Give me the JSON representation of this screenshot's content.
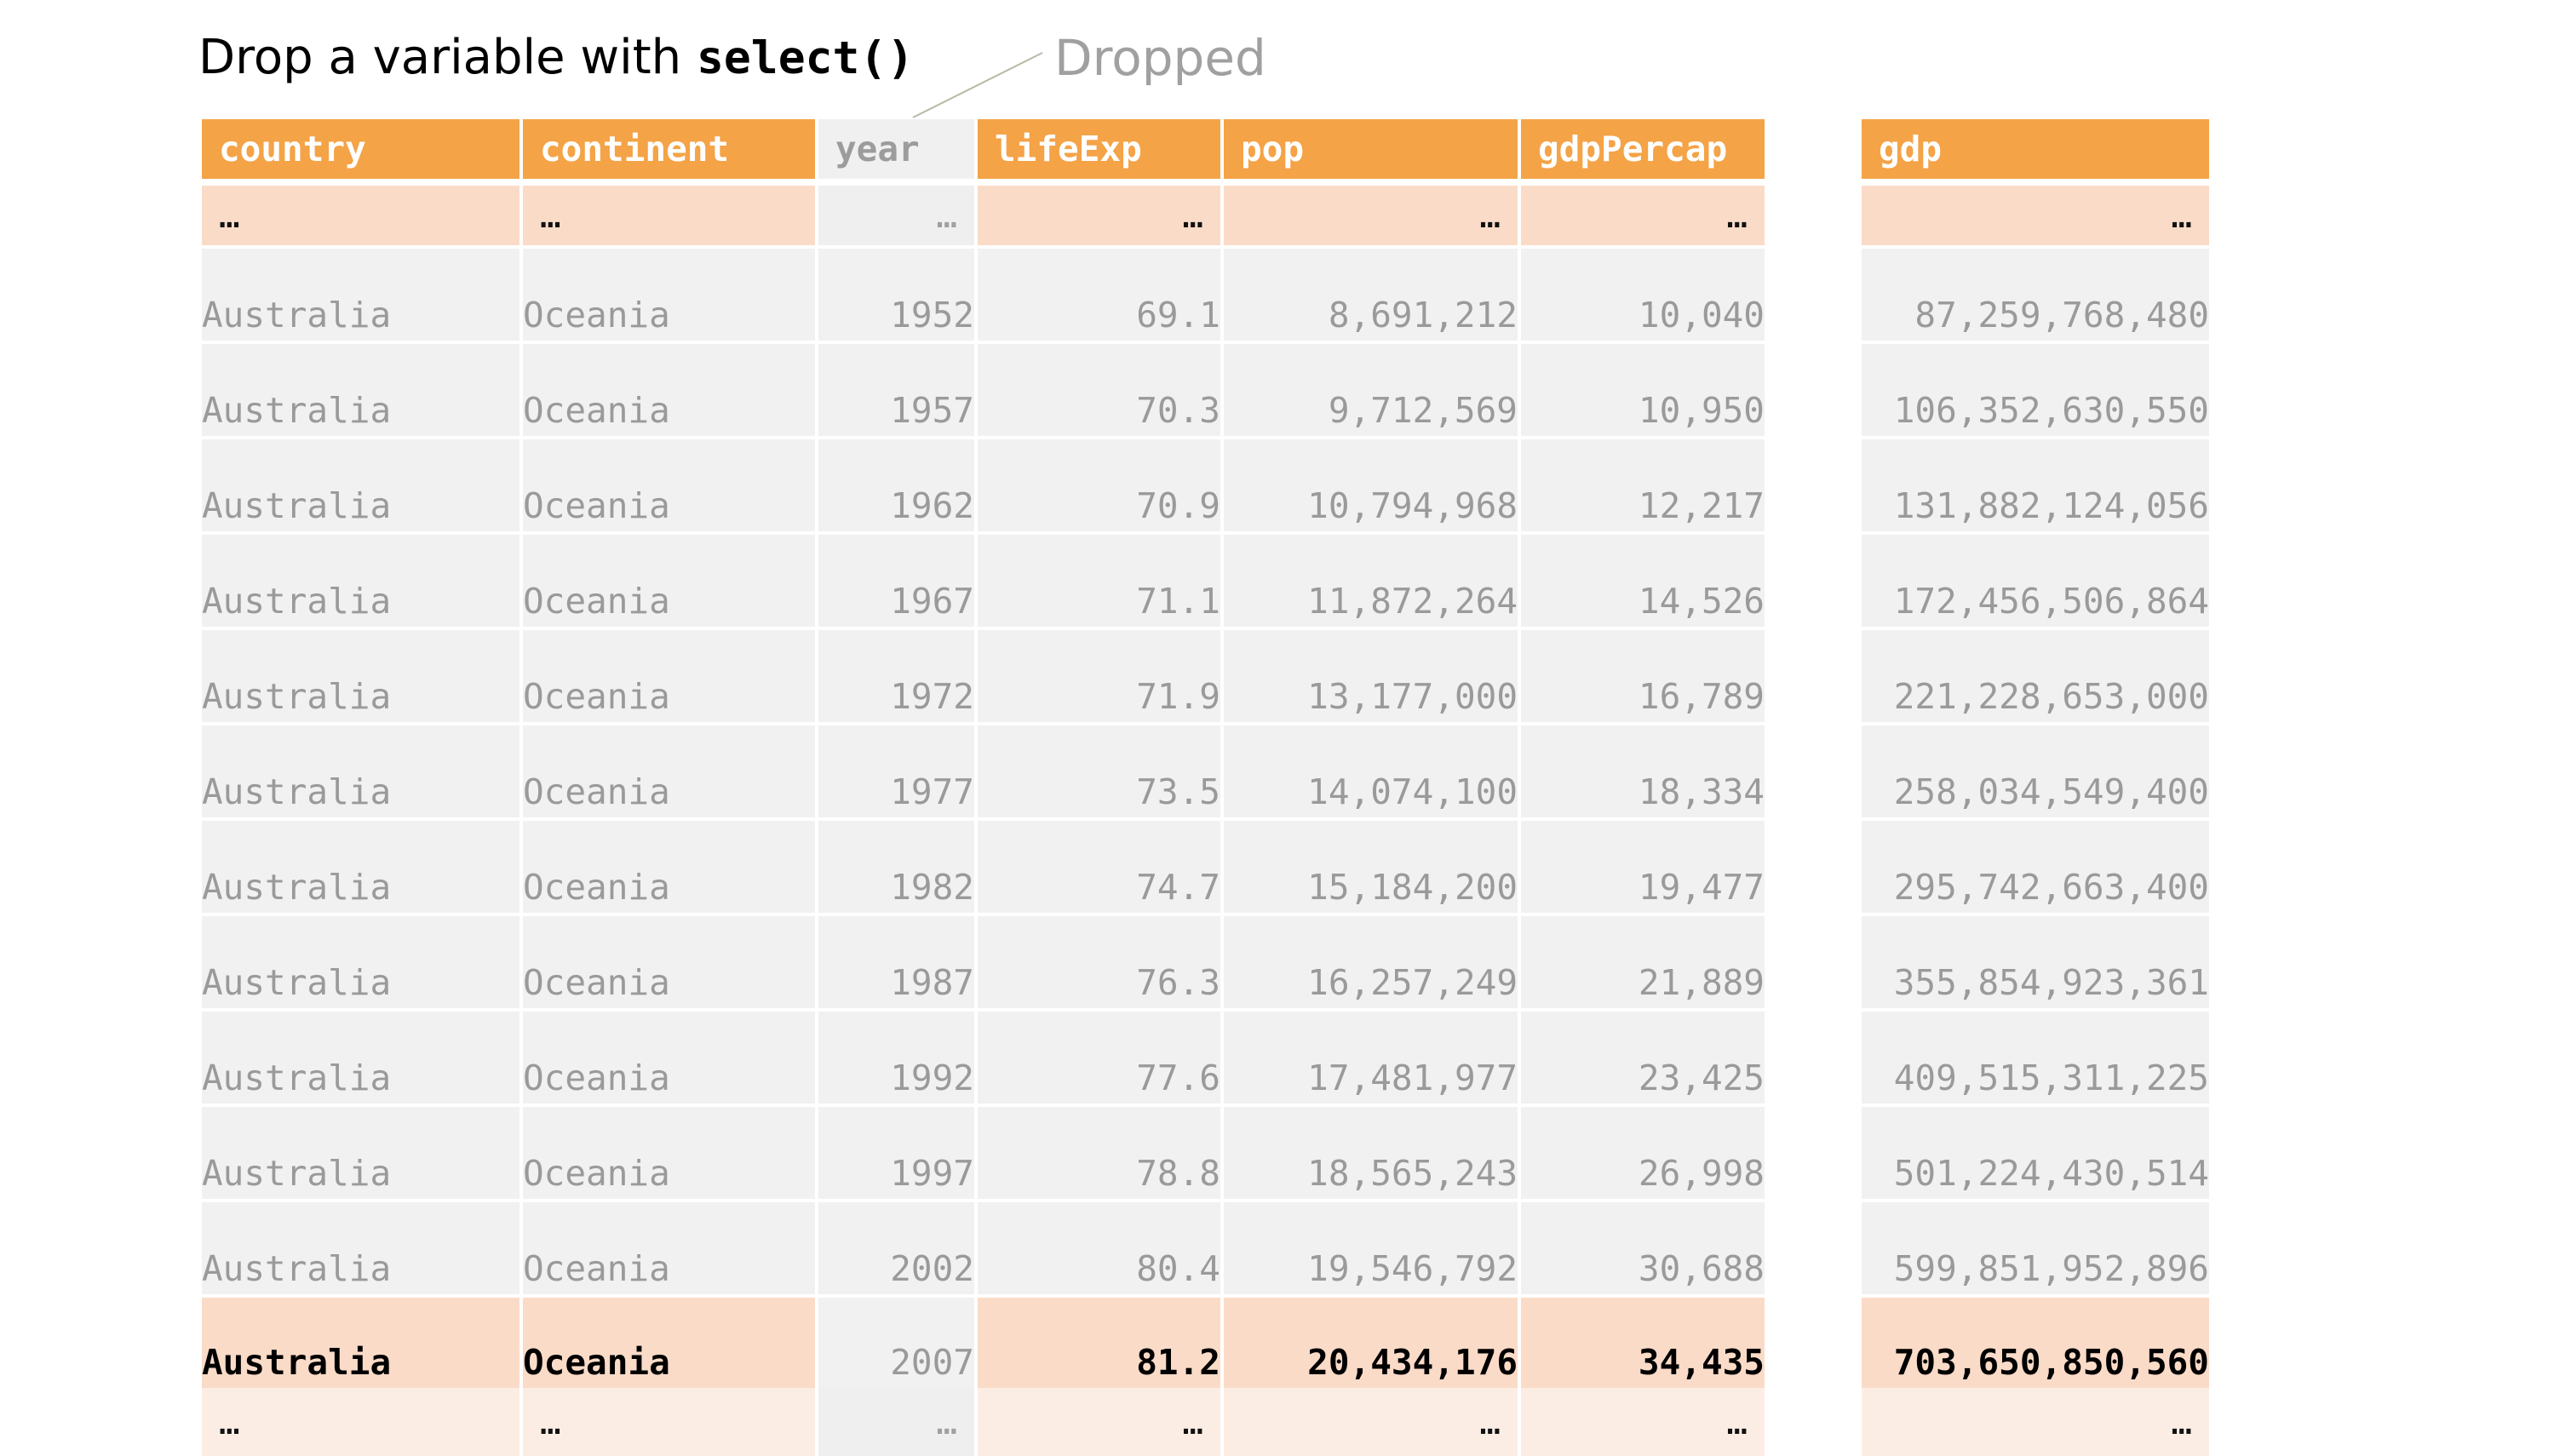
{
  "title": {
    "prefix": "Drop a variable with ",
    "code": "select()"
  },
  "annotation": "Dropped",
  "ellipsis": "…",
  "colors": {
    "header": "#f4a347",
    "header_text": "#ffffff",
    "highlight_row": "#fadbc8",
    "dropped_column": "#f0f0f0",
    "body_text": "#9a9a9a"
  },
  "main_table": {
    "columns": [
      {
        "name": "country",
        "align": "left",
        "dropped": false
      },
      {
        "name": "continent",
        "align": "left",
        "dropped": false
      },
      {
        "name": "year",
        "align": "right",
        "dropped": true
      },
      {
        "name": "lifeExp",
        "align": "right",
        "dropped": false
      },
      {
        "name": "pop",
        "align": "right",
        "dropped": false
      },
      {
        "name": "gdpPercap",
        "align": "right",
        "dropped": false
      }
    ],
    "rows": [
      [
        "Australia",
        "Oceania",
        "1952",
        "69.1",
        "8,691,212",
        "10,040"
      ],
      [
        "Australia",
        "Oceania",
        "1957",
        "70.3",
        "9,712,569",
        "10,950"
      ],
      [
        "Australia",
        "Oceania",
        "1962",
        "70.9",
        "10,794,968",
        "12,217"
      ],
      [
        "Australia",
        "Oceania",
        "1967",
        "71.1",
        "11,872,264",
        "14,526"
      ],
      [
        "Australia",
        "Oceania",
        "1972",
        "71.9",
        "13,177,000",
        "16,789"
      ],
      [
        "Australia",
        "Oceania",
        "1977",
        "73.5",
        "14,074,100",
        "18,334"
      ],
      [
        "Australia",
        "Oceania",
        "1982",
        "74.7",
        "15,184,200",
        "19,477"
      ],
      [
        "Australia",
        "Oceania",
        "1987",
        "76.3",
        "16,257,249",
        "21,889"
      ],
      [
        "Australia",
        "Oceania",
        "1992",
        "77.6",
        "17,481,977",
        "23,425"
      ],
      [
        "Australia",
        "Oceania",
        "1997",
        "78.8",
        "18,565,243",
        "26,998"
      ],
      [
        "Australia",
        "Oceania",
        "2002",
        "80.4",
        "19,546,792",
        "30,688"
      ],
      [
        "Australia",
        "Oceania",
        "2007",
        "81.2",
        "20,434,176",
        "34,435"
      ]
    ],
    "highlighted_row": 11
  },
  "side_table": {
    "column": "gdp",
    "values": [
      "87,259,768,480",
      "106,352,630,550",
      "131,882,124,056",
      "172,456,506,864",
      "221,228,653,000",
      "258,034,549,400",
      "295,742,663,400",
      "355,854,923,361",
      "409,515,311,225",
      "501,224,430,514",
      "599,851,952,896",
      "703,650,850,560"
    ]
  }
}
